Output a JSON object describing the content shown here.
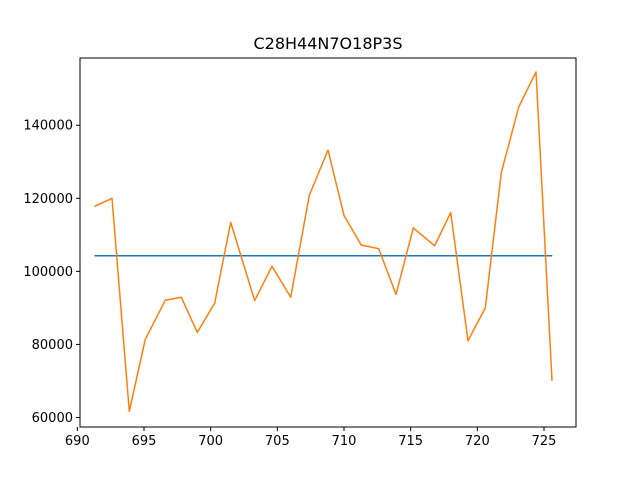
{
  "chart_data": {
    "type": "line",
    "title": "C28H44N7O18P3S",
    "xlabel": "",
    "ylabel": "",
    "xlim": [
      690.2,
      727.4
    ],
    "ylim": [
      57400,
      158400
    ],
    "x_ticks": [
      690,
      695,
      700,
      705,
      710,
      715,
      720,
      725
    ],
    "y_ticks": [
      60000,
      80000,
      100000,
      120000,
      140000
    ],
    "grid": false,
    "series": [
      {
        "color": "#1f77b4",
        "x": [
          691.3,
          725.6
        ],
        "y": [
          104300,
          104300
        ]
      },
      {
        "color": "#ff7f0e",
        "x": [
          691.3,
          692.6,
          693.9,
          695.1,
          696.6,
          697.8,
          699.0,
          700.3,
          701.5,
          703.3,
          704.6,
          706.0,
          707.4,
          708.8,
          710.0,
          711.3,
          712.6,
          713.9,
          715.2,
          716.8,
          718.0,
          719.3,
          720.6,
          721.8,
          723.1,
          724.4,
          725.6
        ],
        "y": [
          117800,
          120000,
          61700,
          81400,
          92100,
          92900,
          83300,
          91300,
          113400,
          92000,
          101400,
          92900,
          120800,
          133200,
          115300,
          107200,
          106200,
          93700,
          111900,
          107000,
          116100,
          81000,
          90000,
          127000,
          145000,
          154600,
          70100
        ]
      }
    ]
  }
}
